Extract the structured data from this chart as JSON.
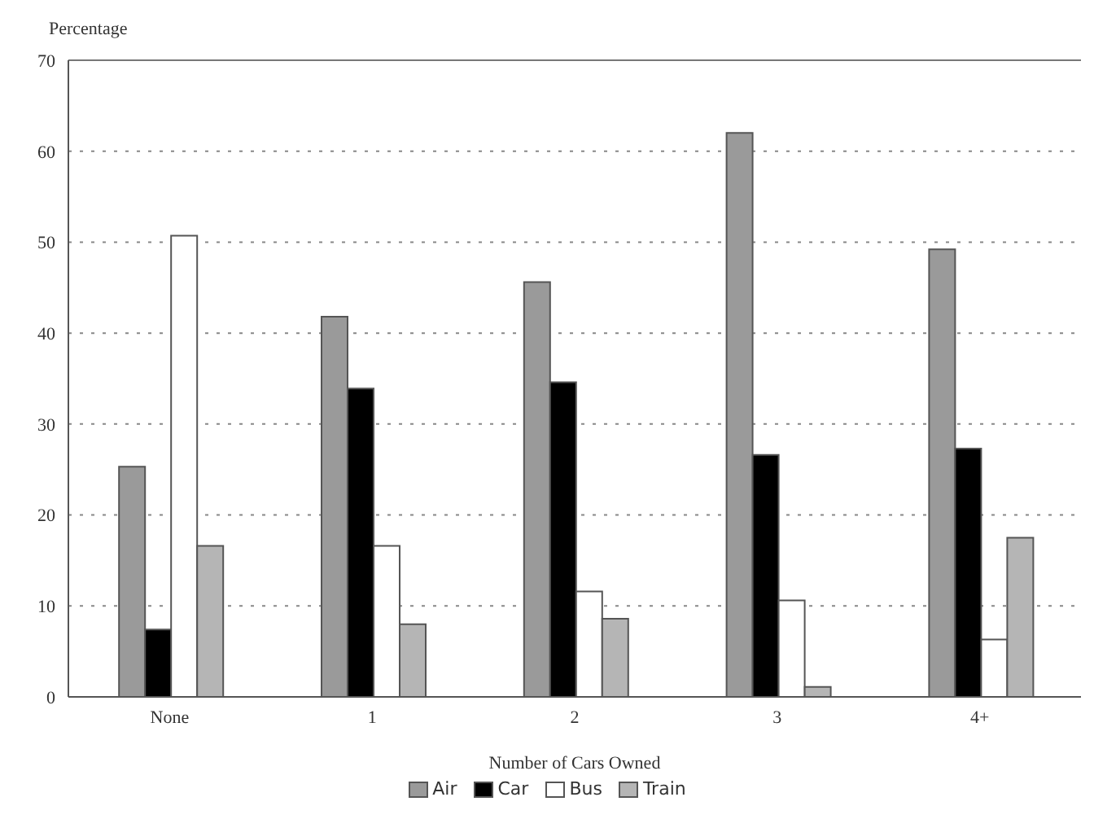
{
  "chart_data": {
    "type": "bar",
    "ylabel": "Percentage",
    "xlabel": "Number of Cars Owned",
    "categories": [
      "None",
      "1",
      "2",
      "3",
      "4+"
    ],
    "series": [
      {
        "name": "Air",
        "color": "#9a9a9a",
        "values": [
          25.3,
          41.8,
          45.6,
          62.0,
          49.2
        ]
      },
      {
        "name": "Car",
        "color": "#000000",
        "values": [
          7.4,
          33.9,
          34.6,
          26.6,
          27.3
        ]
      },
      {
        "name": "Bus",
        "color": "#ffffff",
        "values": [
          50.7,
          16.6,
          11.6,
          10.6,
          6.3
        ]
      },
      {
        "name": "Train",
        "color": "#b5b5b5",
        "values": [
          16.6,
          8.0,
          8.6,
          1.1,
          17.5
        ]
      }
    ],
    "ylim": [
      0,
      70
    ],
    "yticks": [
      0,
      10,
      20,
      30,
      40,
      50,
      60,
      70
    ],
    "grid": "y",
    "legend": "bottom"
  }
}
